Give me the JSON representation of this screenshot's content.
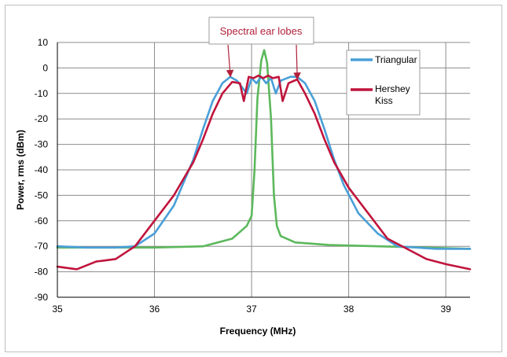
{
  "chart_data": {
    "type": "line",
    "xlabel": "Frequency (MHz)",
    "ylabel": "Power, rms (dBm)",
    "xlim": [
      35,
      39.25
    ],
    "ylim": [
      -90,
      10
    ],
    "x_ticks": [
      35,
      36,
      37,
      38,
      39
    ],
    "y_ticks": [
      10,
      0,
      -10,
      -20,
      -30,
      -40,
      -50,
      -60,
      -70,
      -80,
      -90
    ],
    "grid": true,
    "legend_position": "top-right",
    "annotation": {
      "text": "Spectral ear lobes",
      "arrow_targets": [
        [
          36.78,
          -3.5
        ],
        [
          37.47,
          -4.5
        ]
      ]
    },
    "series": [
      {
        "name": "Triangular",
        "color": "#4a9fd8",
        "x": [
          35,
          35.3,
          35.6,
          35.8,
          36.0,
          36.2,
          36.4,
          36.5,
          36.6,
          36.7,
          36.78,
          36.85,
          36.95,
          37.0,
          37.05,
          37.1,
          37.15,
          37.2,
          37.25,
          37.3,
          37.4,
          37.47,
          37.55,
          37.65,
          37.75,
          37.85,
          37.95,
          38.1,
          38.3,
          38.5,
          38.7,
          38.9,
          39.1,
          39.25
        ],
        "y": [
          -70,
          -70.5,
          -70.5,
          -70,
          -65,
          -54,
          -36,
          -24,
          -13,
          -6,
          -3.5,
          -5,
          -10,
          -4,
          -6,
          -3.5,
          -6,
          -4,
          -10,
          -5,
          -3.5,
          -3.5,
          -6,
          -13,
          -24,
          -36,
          -46,
          -57,
          -65,
          -70,
          -70.5,
          -71,
          -71,
          -71
        ]
      },
      {
        "name": "Hershey Kiss",
        "color": "#c0143c",
        "x": [
          35,
          35.2,
          35.4,
          35.6,
          35.8,
          36.0,
          36.2,
          36.4,
          36.5,
          36.6,
          36.7,
          36.8,
          36.88,
          36.92,
          36.97,
          37.02,
          37.07,
          37.12,
          37.17,
          37.22,
          37.28,
          37.32,
          37.38,
          37.47,
          37.55,
          37.65,
          37.75,
          37.85,
          38.0,
          38.2,
          38.4,
          38.6,
          38.8,
          39.0,
          39.25
        ],
        "y": [
          -78,
          -79,
          -76,
          -75,
          -70,
          -60,
          -50,
          -37,
          -28,
          -18,
          -10,
          -5.5,
          -6,
          -13,
          -3.5,
          -4,
          -3,
          -4,
          -3,
          -4,
          -3.5,
          -13,
          -6,
          -4.5,
          -10,
          -18,
          -28,
          -37,
          -47,
          -57,
          -67,
          -71,
          -75,
          -77,
          -79
        ]
      },
      {
        "name": "",
        "color": "#5cb85c",
        "x": [
          35,
          35.5,
          36.0,
          36.5,
          36.8,
          36.95,
          37.0,
          37.03,
          37.06,
          37.1,
          37.13,
          37.16,
          37.2,
          37.23,
          37.26,
          37.3,
          37.45,
          37.8,
          38.3,
          38.8,
          39.25
        ],
        "y": [
          -70.5,
          -70.5,
          -70.5,
          -70,
          -67,
          -62,
          -58,
          -40,
          -12,
          3,
          7,
          2,
          -20,
          -50,
          -62,
          -66,
          -68.5,
          -69.5,
          -70,
          -70.5,
          -71
        ]
      }
    ]
  }
}
